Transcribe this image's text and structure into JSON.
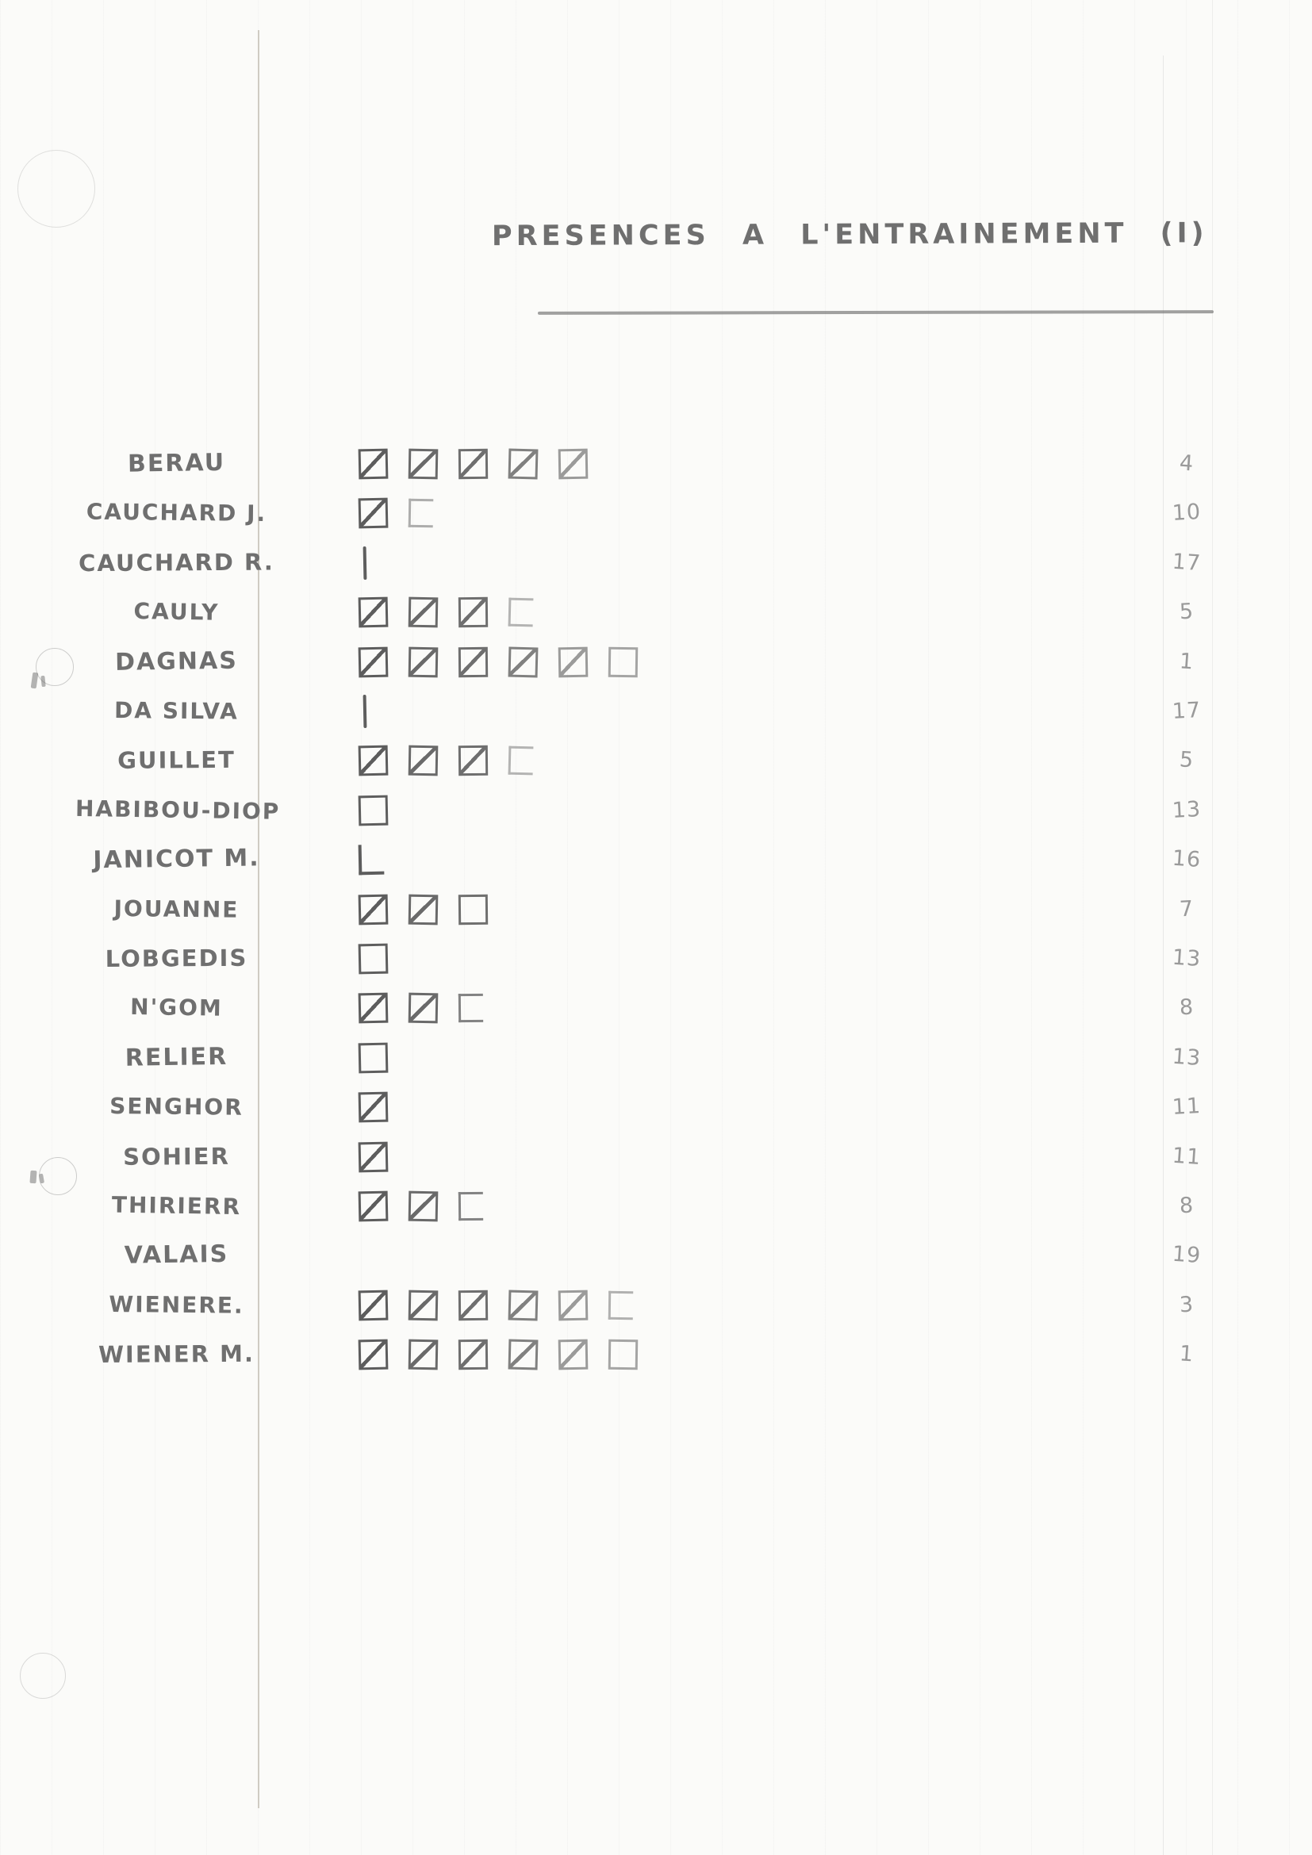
{
  "title": "PRESENCES A L'ENTRAINEMENT (I)",
  "colors": {
    "paper": "#fbfbf9",
    "pencil": "#6f6f6f",
    "pencil_dark": "#575757",
    "pencil_light": "#9a9a9a",
    "margin_line": "#c2bcb2",
    "ruling": "#b9b9b9"
  },
  "mark_legend": {
    "crossed": "square-with-diagonal-tally",
    "open": "open-square-tally",
    "c": "three-sided-square-tally",
    "l": "two-sided-square-tally",
    "bar": "single-stroke-tally"
  },
  "rows": [
    {
      "name": "BERAU",
      "marks": [
        "crossed",
        "crossed",
        "crossed",
        "crossed",
        "crossed"
      ],
      "rank": "4"
    },
    {
      "name": "CAUCHARD J.",
      "marks": [
        "crossed",
        "c"
      ],
      "rank": "10"
    },
    {
      "name": "CAUCHARD R.",
      "marks": [
        "bar"
      ],
      "rank": "17"
    },
    {
      "name": "CAULY",
      "marks": [
        "crossed",
        "crossed",
        "crossed",
        "c"
      ],
      "rank": "5"
    },
    {
      "name": "DAGNAS",
      "marks": [
        "crossed",
        "crossed",
        "crossed",
        "crossed",
        "crossed",
        "open"
      ],
      "rank": "1"
    },
    {
      "name": "DA SILVA",
      "marks": [
        "bar"
      ],
      "rank": "17"
    },
    {
      "name": "GUILLET",
      "marks": [
        "crossed",
        "crossed",
        "crossed",
        "c"
      ],
      "rank": "5"
    },
    {
      "name": "HABIBOU-DIOP",
      "marks": [
        "open"
      ],
      "rank": "13"
    },
    {
      "name": "JANICOT M.",
      "marks": [
        "l"
      ],
      "rank": "16"
    },
    {
      "name": "JOUANNE",
      "marks": [
        "crossed",
        "crossed",
        "open"
      ],
      "rank": "7"
    },
    {
      "name": "LOBGEDIS",
      "marks": [
        "open"
      ],
      "rank": "13"
    },
    {
      "name": "N'GOM",
      "marks": [
        "crossed",
        "crossed",
        "c"
      ],
      "rank": "8"
    },
    {
      "name": "RELIER",
      "marks": [
        "open"
      ],
      "rank": "13"
    },
    {
      "name": "SENGHOR",
      "marks": [
        "crossed"
      ],
      "rank": "11"
    },
    {
      "name": "SOHIER",
      "marks": [
        "crossed"
      ],
      "rank": "11"
    },
    {
      "name": "THIRIERR",
      "marks": [
        "crossed",
        "crossed",
        "c"
      ],
      "rank": "8"
    },
    {
      "name": "VALAIS",
      "marks": [],
      "rank": "19"
    },
    {
      "name": "WIENERE.",
      "marks": [
        "crossed",
        "crossed",
        "crossed",
        "crossed",
        "crossed",
        "c"
      ],
      "rank": "3"
    },
    {
      "name": "WIENER M.",
      "marks": [
        "crossed",
        "crossed",
        "crossed",
        "crossed",
        "crossed",
        "open"
      ],
      "rank": "1"
    }
  ]
}
